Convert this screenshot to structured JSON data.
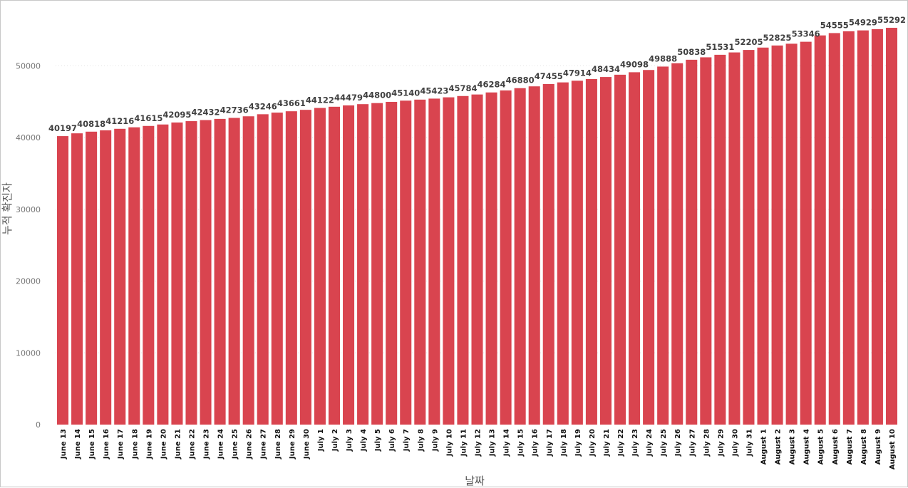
{
  "chart_data": {
    "type": "bar",
    "title": "",
    "xlabel": "날짜",
    "ylabel": "누적 확진자",
    "ylim": [
      0,
      55292
    ],
    "yticks": [
      0,
      10000,
      20000,
      30000,
      40000,
      50000
    ],
    "grid": true,
    "bar_color": "#d9444f",
    "categories": [
      "June 13",
      "June 14",
      "June 15",
      "June 16",
      "June 17",
      "June 18",
      "June 19",
      "June 20",
      "June 21",
      "June 22",
      "June 23",
      "June 24",
      "June 25",
      "June 26",
      "June 27",
      "June 28",
      "June 29",
      "June 30",
      "July 1",
      "July 2",
      "July 3",
      "July 4",
      "July 5",
      "July 6",
      "July 7",
      "July 8",
      "July 9",
      "July 10",
      "July 11",
      "July 12",
      "July 13",
      "July 14",
      "July 15",
      "July 16",
      "July 17",
      "July 18",
      "July 19",
      "July 20",
      "July 21",
      "July 22",
      "July 23",
      "July 24",
      "July 25",
      "July 26",
      "July 27",
      "July 28",
      "July 29",
      "July 30",
      "July 31",
      "August 1",
      "August 2",
      "August 3",
      "August 4",
      "August 5",
      "August 6",
      "August 7",
      "August 8",
      "August 9",
      "August 10"
    ],
    "values": [
      40197,
      40586,
      40818,
      41006,
      41216,
      41425,
      41615,
      41818,
      42095,
      42283,
      42432,
      42598,
      42736,
      42958,
      43246,
      43474,
      43661,
      43858,
      44122,
      44290,
      44479,
      44652,
      44800,
      44971,
      45140,
      45282,
      45423,
      45604,
      45784,
      45998,
      46284,
      46563,
      46880,
      47132,
      47455,
      47684,
      47914,
      48145,
      48434,
      48752,
      49098,
      49412,
      49888,
      50352,
      50838,
      51177,
      51531,
      51860,
      52205,
      52534,
      52825,
      53071,
      53346,
      54230,
      54555,
      54806,
      54929,
      55106,
      55292
    ],
    "data_labels": [
      "40197",
      "",
      "40818",
      "",
      "41216",
      "",
      "41615",
      "",
      "42095",
      "",
      "42432",
      "",
      "42736",
      "",
      "43246",
      "",
      "43661",
      "",
      "44122",
      "",
      "44479",
      "",
      "44800",
      "",
      "45140",
      "",
      "45423",
      "",
      "45784",
      "",
      "46284",
      "",
      "46880",
      "",
      "47455",
      "",
      "47914",
      "",
      "48434",
      "",
      "49098",
      "",
      "49888",
      "",
      "50838",
      "",
      "51531",
      "",
      "52205",
      "",
      "52825",
      "",
      "53346",
      "",
      "54555",
      "",
      "54929",
      "",
      "55292"
    ]
  }
}
